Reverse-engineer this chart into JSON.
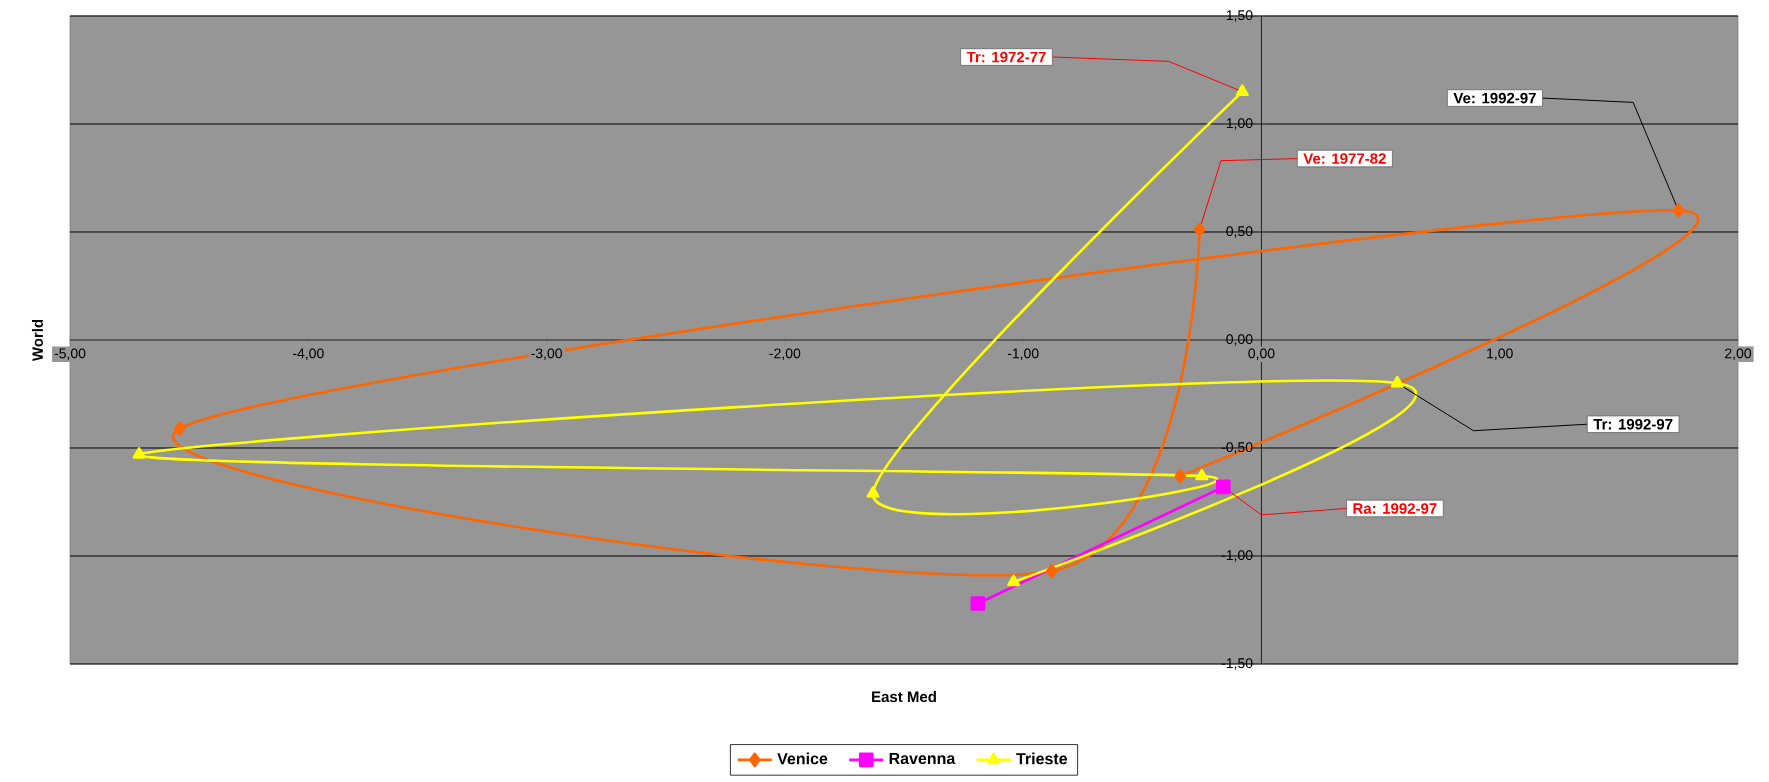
{
  "chart_data": {
    "type": "line",
    "xlabel": "East Med",
    "ylabel": "World",
    "xlim": [
      -5,
      2
    ],
    "ylim": [
      -1.5,
      1.5
    ],
    "xticks": [
      {
        "value": -5,
        "label": "-5,00"
      },
      {
        "value": -4,
        "label": "-4,00"
      },
      {
        "value": -3,
        "label": "-3,00"
      },
      {
        "value": -2,
        "label": "-2,00"
      },
      {
        "value": -1,
        "label": "-1,00"
      },
      {
        "value": 0,
        "label": "0,00"
      },
      {
        "value": 1,
        "label": "1,00"
      },
      {
        "value": 2,
        "label": "2,00"
      }
    ],
    "yticks": [
      {
        "value": -1.5,
        "label": "-1,50"
      },
      {
        "value": -1,
        "label": "-1,00"
      },
      {
        "value": -0.5,
        "label": "-0,50"
      },
      {
        "value": 0,
        "label": "0,00"
      },
      {
        "value": 0.5,
        "label": "0,50"
      },
      {
        "value": 1,
        "label": "1,00"
      },
      {
        "value": 1.5,
        "label": "1,50"
      }
    ],
    "grid": "y",
    "legend": "bottom",
    "series": [
      {
        "name": "Venice",
        "color": "#ff6600",
        "marker": "diamond",
        "x": [
          -0.26,
          -0.88,
          -4.54,
          1.75,
          -0.34
        ],
        "values": [
          0.51,
          -1.07,
          -0.41,
          0.6,
          -0.63
        ]
      },
      {
        "name": "Ravenna",
        "color": "#ff00ff",
        "marker": "square",
        "x": [
          -1.19,
          -0.16
        ],
        "values": [
          -1.22,
          -0.68
        ]
      },
      {
        "name": "Trieste",
        "color": "#ffff00",
        "marker": "triangle",
        "x": [
          -0.08,
          -1.63,
          -0.25,
          -4.71,
          0.57,
          -1.04
        ],
        "values": [
          1.15,
          -0.71,
          -0.63,
          -0.53,
          -0.2,
          -1.12
        ]
      }
    ],
    "annotations": [
      {
        "text": "Tr: 1972-77",
        "x": -0.08,
        "y": 1.15
      },
      {
        "text": "Ve: 1992-97",
        "x": 1.75,
        "y": 0.6
      },
      {
        "text": "Ve: 1977-82",
        "x": -0.26,
        "y": 0.51
      },
      {
        "text": "Tr: 1992-97",
        "x": 0.57,
        "y": -0.2
      },
      {
        "text": "Ra: 1992-97",
        "x": -0.16,
        "y": -0.68
      }
    ]
  }
}
